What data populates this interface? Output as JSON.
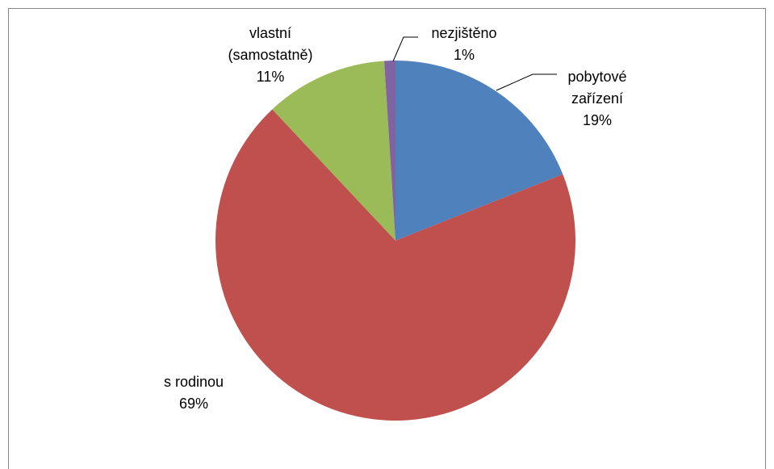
{
  "chart_data": {
    "type": "pie",
    "categories": [
      "pobytové zařízení",
      "s rodinou",
      "vlastní (samostatně)",
      "nezjištěno"
    ],
    "values": [
      19,
      69,
      11,
      1
    ],
    "value_labels": [
      "19%",
      "69%",
      "11%",
      "1%"
    ],
    "colors": [
      "#4f81bd",
      "#c0504d",
      "#9bbb59",
      "#8064a2"
    ]
  }
}
